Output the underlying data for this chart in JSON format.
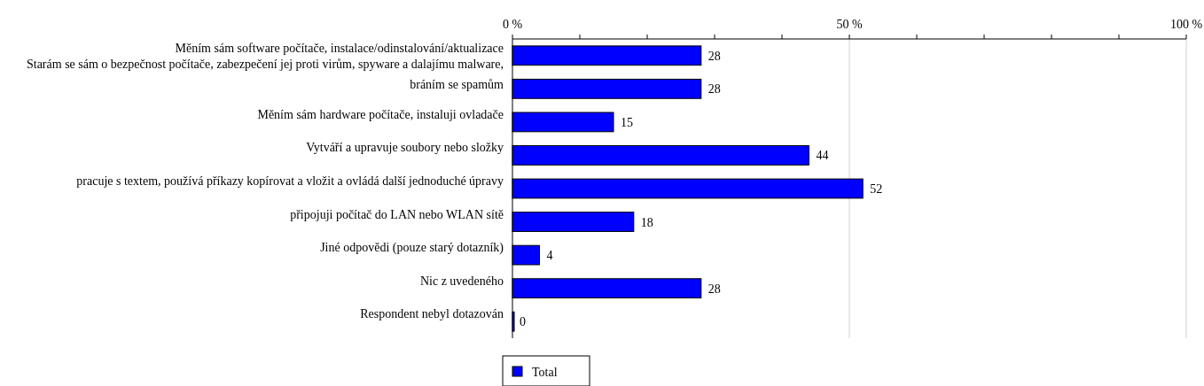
{
  "chart_data": {
    "type": "bar",
    "orientation": "horizontal",
    "categories": [
      "Měním sám software počítače, instalace/odinstalování/aktualizace",
      "Starám se sám o bezpečnost počítače, zabezpečení jej proti virům, spyware a dalajímu malware, bráním se spamům",
      "Měním sám hardware počítače, instaluji ovladače",
      "Vytváří a upravuje soubory nebo složky",
      "pracuje s textem, používá příkazy kopírovat a vložit a ovládá další jednoduché úpravy",
      "připojuji počítač do LAN nebo WLAN sítě",
      "Jiné odpovědi (pouze starý dotazník)",
      "Nic z uvedeného",
      "Respondent nebyl dotazován"
    ],
    "series": [
      {
        "name": "Total",
        "color": "#0000ff",
        "values": [
          28,
          28,
          15,
          44,
          52,
          18,
          4,
          28,
          0
        ]
      }
    ],
    "xlim": [
      0,
      100
    ],
    "xticks": [
      {
        "value": 0,
        "label": "0 %"
      },
      {
        "value": 10,
        "label": null
      },
      {
        "value": 20,
        "label": null
      },
      {
        "value": 30,
        "label": null
      },
      {
        "value": 40,
        "label": null
      },
      {
        "value": 50,
        "label": "50 %"
      },
      {
        "value": 60,
        "label": null
      },
      {
        "value": 70,
        "label": null
      },
      {
        "value": 80,
        "label": null
      },
      {
        "value": 90,
        "label": null
      },
      {
        "value": 100,
        "label": "100 %"
      }
    ],
    "grid": "x",
    "data_labels": true,
    "legend": "bottom"
  }
}
